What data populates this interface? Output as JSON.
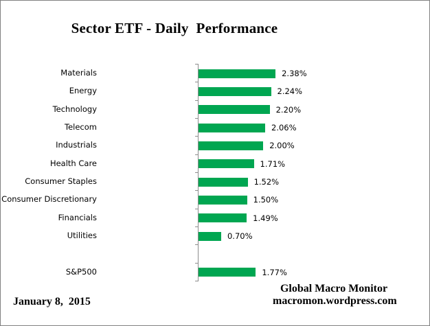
{
  "title": "Sector ETF - Daily  Performance",
  "footer": {
    "date": "January 8,  2015",
    "source_line1": "Global Macro Monitor",
    "source_line2": "macromon.wordpress.com"
  },
  "colors": {
    "bar": "#00A651",
    "axis": "#8C8C8C",
    "border": "#808080",
    "text": "#000000"
  },
  "chart_data": {
    "type": "bar",
    "orientation": "horizontal",
    "title": "Sector ETF - Daily  Performance",
    "categories": [
      "Materials",
      "Energy",
      "Technology",
      "Telecom",
      "Industrials",
      "Health Care",
      "Consumer Staples",
      "Consumer Discretionary",
      "Financials",
      "Utilities",
      "",
      "S&P500"
    ],
    "values": [
      2.38,
      2.24,
      2.2,
      2.06,
      2.0,
      1.71,
      1.52,
      1.5,
      1.49,
      0.7,
      null,
      1.77
    ],
    "value_labels": [
      "2.38%",
      "2.24%",
      "2.20%",
      "2.06%",
      "2.00%",
      "1.71%",
      "1.52%",
      "1.50%",
      "1.49%",
      "0.70%",
      null,
      "1.77%"
    ],
    "xlim": [
      0,
      2.5
    ],
    "grid": false,
    "legend": false,
    "value_labels_shown": true
  }
}
